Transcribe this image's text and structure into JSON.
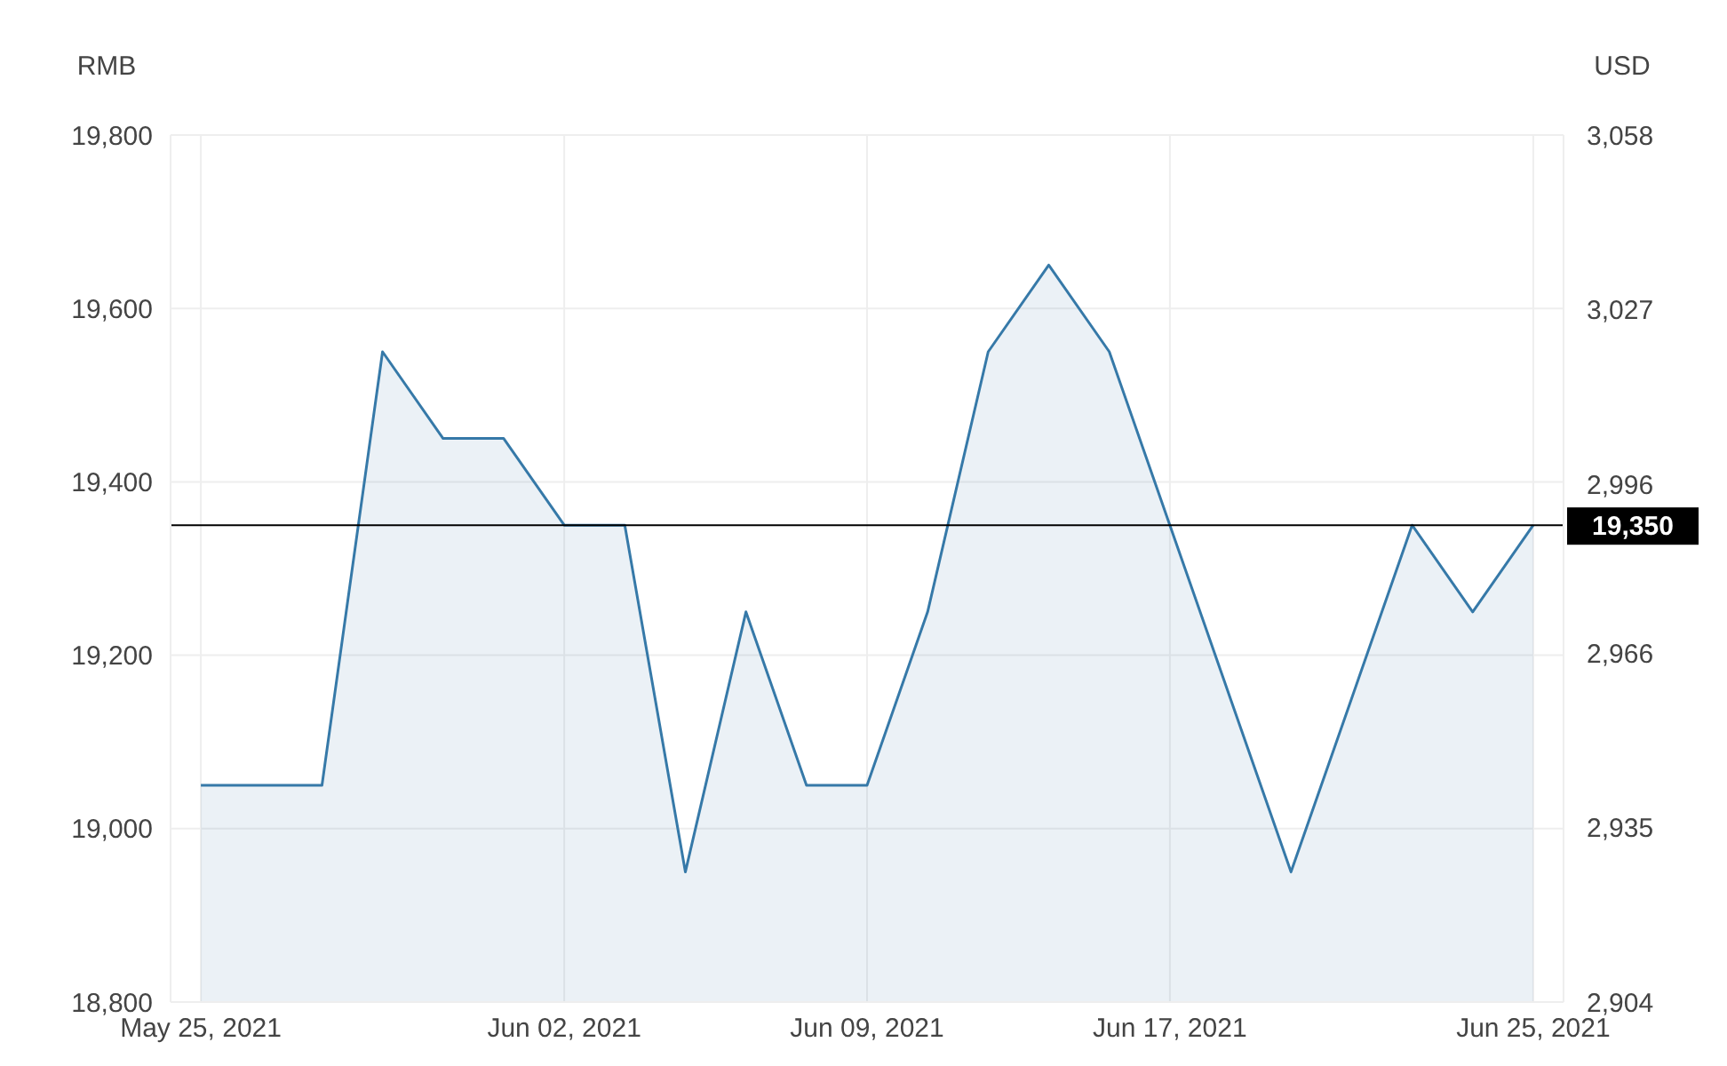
{
  "chart_data": {
    "type": "area",
    "categories": [
      "May 25, 2021",
      null,
      null,
      null,
      null,
      null,
      "Jun 02, 2021",
      null,
      null,
      null,
      null,
      "Jun 09, 2021",
      null,
      null,
      null,
      null,
      "Jun 17, 2021",
      null,
      null,
      null,
      null,
      null,
      "Jun 25, 2021"
    ],
    "values": [
      19050,
      19050,
      19050,
      19550,
      19450,
      19450,
      19350,
      19350,
      18950,
      19250,
      19050,
      19050,
      19250,
      19550,
      19650,
      19550,
      19350,
      19150,
      18950,
      19150,
      19350,
      19250,
      19350
    ],
    "color": "#3679a8",
    "ylabel": "RMB",
    "y2label": "USD",
    "ylim": [
      18800,
      19800
    ],
    "yticks": [
      {
        "value": 18800,
        "label": "18,800"
      },
      {
        "value": 19000,
        "label": "19,000"
      },
      {
        "value": 19200,
        "label": "19,200"
      },
      {
        "value": 19400,
        "label": "19,400"
      },
      {
        "value": 19600,
        "label": "19,600"
      },
      {
        "value": 19800,
        "label": "19,800"
      }
    ],
    "y2lim": [
      2904,
      3058
    ],
    "y2ticks": [
      {
        "value": 2904,
        "label": "2,904"
      },
      {
        "value": 2935,
        "label": "2,935"
      },
      {
        "value": 2966,
        "label": "2,966"
      },
      {
        "value": 2996,
        "label": "2,996"
      },
      {
        "value": 3027,
        "label": "3,027"
      },
      {
        "value": 3058,
        "label": "3,058"
      }
    ],
    "ref_lines": [
      {
        "axis": "y",
        "value": 19350,
        "label": "19,350",
        "color": "#000000"
      }
    ],
    "grid": true,
    "line_style": "solid"
  }
}
